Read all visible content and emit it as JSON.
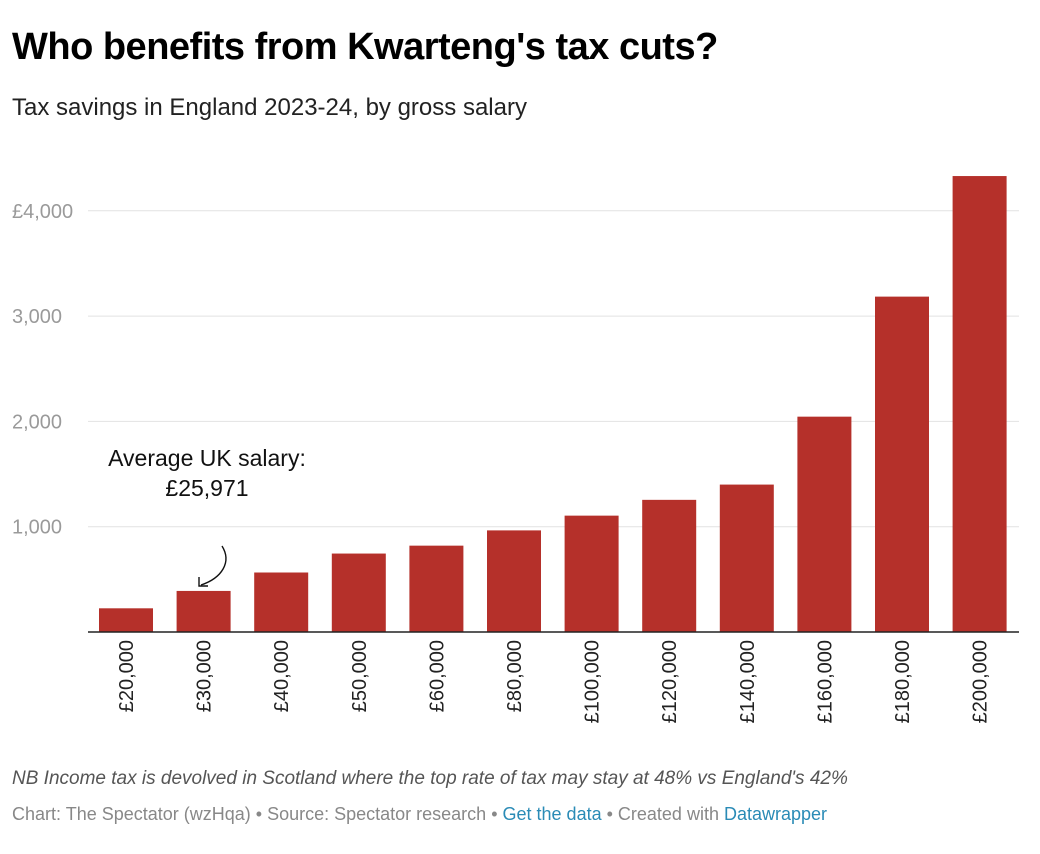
{
  "colors": {
    "bar": "#b5302a",
    "grid": "#e2e2e2",
    "tick_text": "#9a9a9a",
    "axis": "#222222",
    "link": "#2a8bb6"
  },
  "chart_data": {
    "type": "bar",
    "title": "Who benefits from Kwarteng's tax cuts?",
    "subtitle": "Tax savings in England 2023-24, by gross salary",
    "xlabel": "",
    "ylabel": "",
    "categories": [
      "£20,000",
      "£30,000",
      "£40,000",
      "£50,000",
      "£60,000",
      "£80,000",
      "£100,000",
      "£120,000",
      "£140,000",
      "£160,000",
      "£180,000",
      "£200,000"
    ],
    "values": [
      225,
      390,
      565,
      745,
      820,
      965,
      1105,
      1255,
      1400,
      2045,
      3185,
      4330
    ],
    "ylim": [
      0,
      4500
    ],
    "y_ticks": [
      {
        "value": 1000,
        "label": "1,000"
      },
      {
        "value": 2000,
        "label": "2,000"
      },
      {
        "value": 3000,
        "label": "3,000"
      },
      {
        "value": 4000,
        "label": "£4,000"
      }
    ],
    "grid": true,
    "annotation": {
      "line1": "Average UK salary:",
      "line2": "£25,971",
      "target_category": "£30,000"
    }
  },
  "footer": {
    "note": "NB Income tax is devolved in Scotland where the top rate of tax may stay at 48% vs England's 42%",
    "credit": "Chart: The Spectator (wzHqa)",
    "sep1": " • ",
    "source": "Source: Spectator research",
    "sep2": " • ",
    "get_data": "Get the data",
    "sep3": " • ",
    "created_with": "Created with ",
    "datawrapper": "Datawrapper"
  }
}
